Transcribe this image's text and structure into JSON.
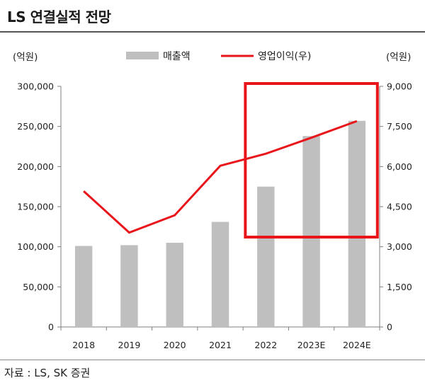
{
  "header": {
    "title": "LS 연결실적 전망"
  },
  "footer": {
    "source": "자료 : LS, SK 증권"
  },
  "chart_data": {
    "type": "bar+line",
    "categories": [
      "2018",
      "2019",
      "2020",
      "2021",
      "2022",
      "2023E",
      "2024E"
    ],
    "series": [
      {
        "name": "매출액",
        "type": "bar",
        "axis": "left",
        "values": [
          101000,
          102000,
          105000,
          131000,
          175000,
          238000,
          257000
        ]
      },
      {
        "name": "영업이익(우)",
        "type": "line",
        "axis": "right",
        "values": [
          5080,
          3530,
          4180,
          6030,
          6480,
          7080,
          7700
        ]
      }
    ],
    "left_axis": {
      "unit": "(억원)",
      "ylim": [
        0,
        300000
      ],
      "ticks": [
        "300,000",
        "250,000",
        "200,000",
        "150,000",
        "100,000",
        "50,000",
        "0"
      ]
    },
    "right_axis": {
      "unit": "(억원)",
      "ylim": [
        0,
        9000
      ],
      "ticks": [
        "9,000",
        "7,500",
        "6,000",
        "4,500",
        "3,000",
        "1,500",
        "0"
      ]
    },
    "legend_position": "top",
    "highlight": {
      "from_category": "2022",
      "to_category": "2024E",
      "color": "#e8161b"
    },
    "colors": {
      "bar": "#bfbfbf",
      "line": "#e8161b",
      "axis": "#7f7f7f"
    }
  }
}
